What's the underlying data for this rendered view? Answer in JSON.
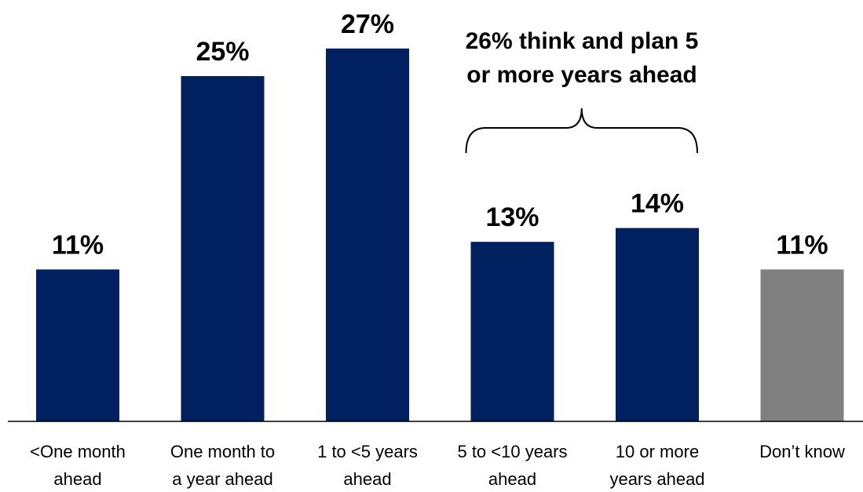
{
  "chart_data": {
    "type": "bar",
    "categories": [
      [
        "<One month",
        "ahead"
      ],
      [
        "One month to",
        "a year ahead"
      ],
      [
        "1 to <5 years",
        "ahead"
      ],
      [
        "5 to <10 years",
        "ahead"
      ],
      [
        "10 or more",
        "years ahead"
      ],
      [
        "Don’t know"
      ]
    ],
    "values": [
      11,
      25,
      27,
      13,
      14,
      11
    ],
    "value_labels": [
      "11%",
      "25%",
      "27%",
      "13%",
      "14%",
      "11%"
    ],
    "bar_colors": [
      "#002060",
      "#002060",
      "#002060",
      "#002060",
      "#002060",
      "#808080"
    ],
    "ylim": [
      0,
      30
    ],
    "title": "",
    "xlabel": "",
    "ylabel": "",
    "grid": false,
    "annotation": {
      "lines": [
        "26% think and plan 5",
        "or more years ahead"
      ],
      "spans_categories": [
        3,
        4
      ]
    }
  }
}
